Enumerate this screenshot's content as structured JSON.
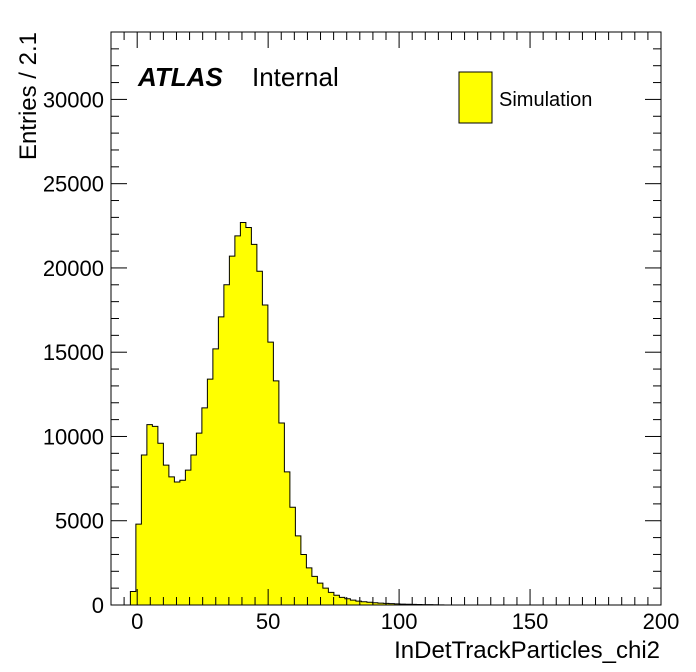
{
  "chart_data": {
    "type": "bar",
    "xlabel": "InDetTrackParticles_chi2",
    "ylabel": "Entries / 2.1",
    "xlim": [
      -10,
      200
    ],
    "ylim": [
      0,
      34000
    ],
    "xticks": [
      0,
      50,
      100,
      150,
      200
    ],
    "yticks": [
      0,
      5000,
      10000,
      15000,
      20000,
      25000,
      30000
    ],
    "bin_width": 2.1,
    "label_main": "ATLAS",
    "label_sub": "Internal",
    "legend": {
      "placement": "top-right",
      "entries": [
        "Simulation"
      ]
    },
    "colors": {
      "fill": "#ffff00",
      "line": "#000000"
    },
    "series": [
      {
        "name": "Simulation",
        "bin_start": -2.6,
        "values": [
          800,
          4800,
          8900,
          10700,
          10600,
          9600,
          8300,
          7600,
          7300,
          7400,
          8000,
          8900,
          10200,
          11700,
          13400,
          15200,
          17100,
          19000,
          20700,
          21900,
          22700,
          22400,
          21400,
          19800,
          17800,
          15600,
          13300,
          10800,
          7900,
          5800,
          4100,
          3000,
          2200,
          1700,
          1300,
          1000,
          750,
          580,
          450,
          370,
          290,
          230,
          190,
          160,
          130,
          110,
          95,
          80,
          65,
          55,
          45,
          38,
          32,
          25,
          20,
          15,
          10
        ]
      }
    ]
  }
}
